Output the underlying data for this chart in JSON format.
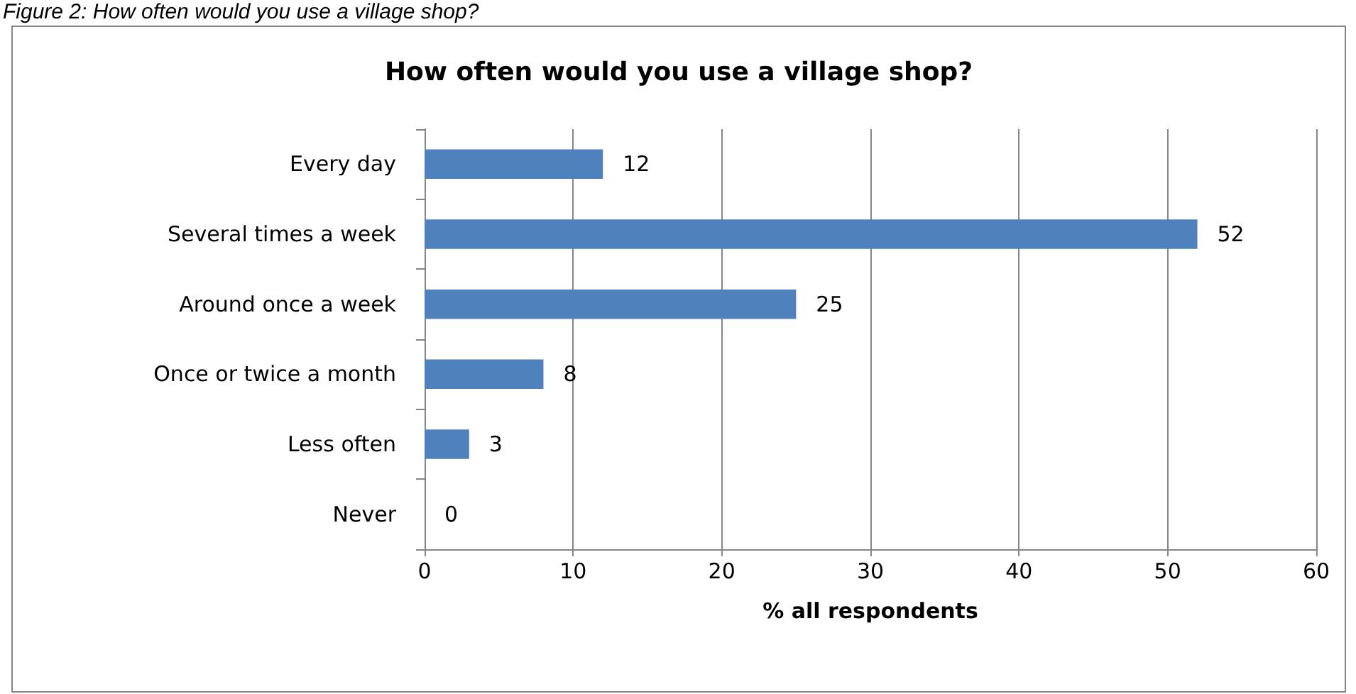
{
  "chart_data": {
    "type": "bar",
    "orientation": "horizontal",
    "title": "How often would you use a village shop?",
    "annotations": [
      "Figure 2: How often would you use a village shop?"
    ],
    "categories": [
      "Every day",
      "Several times a week",
      "Around once a week",
      "Once or twice a month",
      "Less often",
      "Never"
    ],
    "values": [
      12,
      52,
      25,
      8,
      3,
      0
    ],
    "color": "#4f81bd",
    "data_labels": true,
    "xlim": [
      0,
      60
    ],
    "xticks": [
      0,
      10,
      20,
      30,
      40,
      50,
      60
    ],
    "xlabel": "% all respondents",
    "grid": "x"
  }
}
